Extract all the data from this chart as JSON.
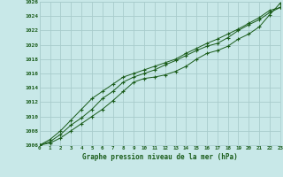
{
  "xlabel": "Graphe pression niveau de la mer (hPa)",
  "background_color": "#c8e8e8",
  "grid_color": "#a8cccc",
  "line_color": "#1a5c1a",
  "x_values": [
    0,
    1,
    2,
    3,
    4,
    5,
    6,
    7,
    8,
    9,
    10,
    11,
    12,
    13,
    14,
    15,
    16,
    17,
    18,
    19,
    20,
    21,
    22,
    23
  ],
  "line1": [
    1006.0,
    1006.3,
    1007.0,
    1008.0,
    1009.0,
    1010.0,
    1011.0,
    1012.2,
    1013.5,
    1014.8,
    1015.3,
    1015.5,
    1015.8,
    1016.3,
    1017.0,
    1018.0,
    1018.8,
    1019.2,
    1019.8,
    1020.8,
    1021.5,
    1022.5,
    1024.2,
    1025.8
  ],
  "line2": [
    1006.0,
    1006.5,
    1007.5,
    1008.8,
    1009.8,
    1011.0,
    1012.5,
    1013.5,
    1014.8,
    1015.5,
    1016.0,
    1016.5,
    1017.2,
    1017.8,
    1018.5,
    1019.2,
    1019.8,
    1020.2,
    1021.0,
    1022.0,
    1022.8,
    1023.5,
    1024.5,
    1025.2
  ],
  "line3": [
    1006.0,
    1006.8,
    1008.0,
    1009.5,
    1011.0,
    1012.5,
    1013.5,
    1014.5,
    1015.5,
    1016.0,
    1016.5,
    1017.0,
    1017.5,
    1018.0,
    1018.8,
    1019.5,
    1020.2,
    1020.8,
    1021.5,
    1022.2,
    1023.0,
    1023.8,
    1024.8,
    1025.2
  ],
  "ylim": [
    1006,
    1026
  ],
  "xlim": [
    0,
    23
  ],
  "yticks": [
    1006,
    1008,
    1010,
    1012,
    1014,
    1016,
    1018,
    1020,
    1022,
    1024,
    1026
  ],
  "xticks": [
    0,
    1,
    2,
    3,
    4,
    5,
    6,
    7,
    8,
    9,
    10,
    11,
    12,
    13,
    14,
    15,
    16,
    17,
    18,
    19,
    20,
    21,
    22,
    23
  ]
}
